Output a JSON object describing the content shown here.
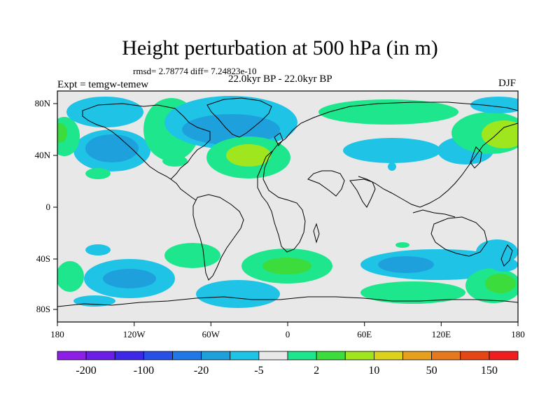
{
  "title": "Height perturbation at 500 hPa (in m)",
  "stats": "rmsd= 2.78774 diff= 7.24823e-10",
  "period": "22.0kyr BP - 22.0kyr BP",
  "experiment": "Expt = temgw-temew",
  "season": "DJF",
  "map": {
    "lon_ticks": [
      "180",
      "120W",
      "60W",
      "0",
      "60E",
      "120E",
      "180"
    ],
    "lat_ticks": [
      "80N",
      "40N",
      "0",
      "40S",
      "80S"
    ],
    "background_color": "#e8e8e8"
  },
  "colorbar": {
    "colors": [
      "#8c1ee6",
      "#6a1ee6",
      "#3c28e6",
      "#2850e6",
      "#1e78e6",
      "#1ea0dc",
      "#1ec3e6",
      "#e8e8e8",
      "#1ee68c",
      "#3cdc3c",
      "#a0e61e",
      "#dcd21e",
      "#e6a01e",
      "#e6781e",
      "#e64614",
      "#f01e1e"
    ],
    "labels": [
      "-200",
      "-100",
      "-20",
      "-5",
      "2",
      "10",
      "50",
      "150"
    ]
  }
}
